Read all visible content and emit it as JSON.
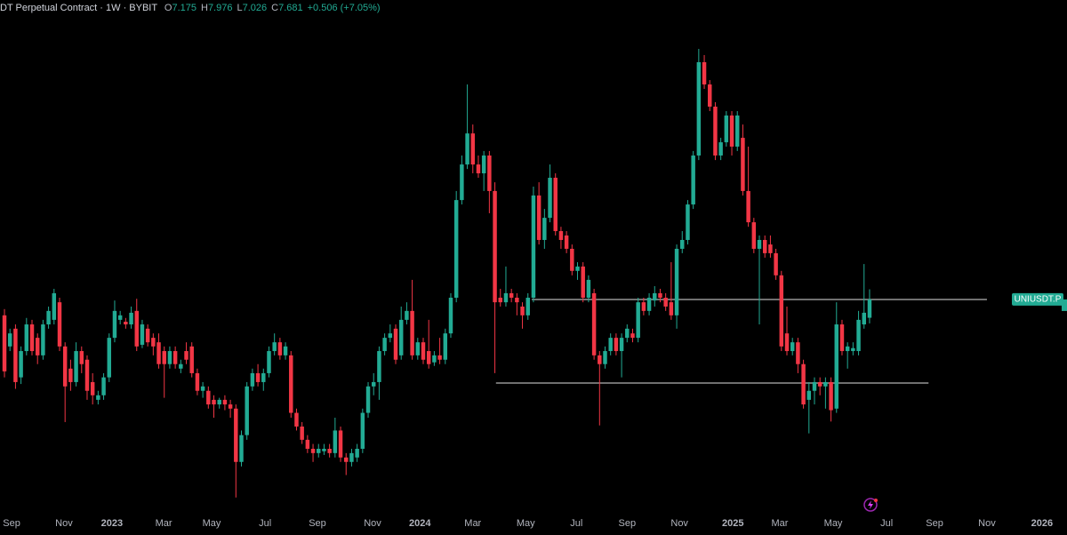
{
  "chart_data": {
    "type": "candlestick",
    "title": "DT Perpetual Contract · 1W · BYBIT",
    "ohlc_keys": [
      "O",
      "H",
      "L",
      "C"
    ],
    "change": "+0.506 (+7.05%)",
    "symbol_tag": "UNIUSDT.P",
    "up_color": "#22ab94",
    "down_color": "#f23645",
    "log_scale": true,
    "ylim": [
      3.5,
      23.36
    ],
    "xlim": [
      -0.81,
      192.83
    ],
    "xticks": [
      {
        "value": 1.3,
        "label": "Sep"
      },
      {
        "value": 10.8,
        "label": "Nov"
      },
      {
        "value": 19.5,
        "label": "2023"
      },
      {
        "value": 28.9,
        "label": "Mar"
      },
      {
        "value": 37.6,
        "label": "May"
      },
      {
        "value": 47.3,
        "label": "Jul"
      },
      {
        "value": 56.8,
        "label": "Sep"
      },
      {
        "value": 66.8,
        "label": "Nov"
      },
      {
        "value": 75.4,
        "label": "2024"
      },
      {
        "value": 85.0,
        "label": "Mar"
      },
      {
        "value": 94.6,
        "label": "May"
      },
      {
        "value": 103.8,
        "label": "Jul"
      },
      {
        "value": 113.0,
        "label": "Sep"
      },
      {
        "value": 122.5,
        "label": "Nov"
      },
      {
        "value": 132.2,
        "label": "2025"
      },
      {
        "value": 140.7,
        "label": "Mar"
      },
      {
        "value": 150.4,
        "label": "May"
      },
      {
        "value": 160.1,
        "label": "Jul"
      },
      {
        "value": 168.8,
        "label": "Sep"
      },
      {
        "value": 178.3,
        "label": "Nov"
      },
      {
        "value": 188.3,
        "label": "2026"
      }
    ],
    "levels": [
      {
        "value": 7.68,
        "x": [
          95.7,
          178.3
        ]
      },
      {
        "value": 5.63,
        "x": [
          89.2,
          167.7
        ]
      }
    ],
    "candles": [
      [
        7.24,
        7.41,
        5.75,
        5.88
      ],
      [
        6.45,
        6.89,
        6.34,
        6.77
      ],
      [
        6.89,
        7.0,
        5.51,
        5.65
      ],
      [
        5.75,
        6.45,
        5.61,
        6.34
      ],
      [
        6.34,
        7.17,
        6.24,
        7.0
      ],
      [
        7.0,
        7.12,
        6.24,
        6.34
      ],
      [
        6.66,
        6.77,
        6.04,
        6.24
      ],
      [
        6.24,
        7.12,
        6.14,
        7.0
      ],
      [
        7.0,
        7.48,
        6.89,
        7.36
      ],
      [
        7.12,
        7.99,
        7.0,
        7.86
      ],
      [
        7.6,
        7.73,
        6.34,
        6.45
      ],
      [
        6.45,
        6.55,
        4.87,
        5.56
      ],
      [
        5.94,
        6.14,
        5.47,
        5.65
      ],
      [
        5.65,
        6.55,
        5.56,
        6.34
      ],
      [
        6.34,
        6.45,
        5.84,
        6.04
      ],
      [
        6.14,
        6.24,
        5.29,
        5.47
      ],
      [
        5.65,
        5.84,
        5.2,
        5.38
      ],
      [
        5.29,
        5.47,
        5.2,
        5.38
      ],
      [
        5.38,
        5.84,
        5.29,
        5.75
      ],
      [
        5.75,
        6.77,
        5.65,
        6.66
      ],
      [
        6.66,
        7.65,
        6.55,
        7.36
      ],
      [
        7.12,
        7.36,
        7.0,
        7.24
      ],
      [
        7.07,
        7.17,
        6.89,
        7.0
      ],
      [
        7.0,
        7.48,
        6.89,
        7.31
      ],
      [
        7.36,
        7.7,
        6.34,
        6.45
      ],
      [
        6.49,
        7.12,
        6.41,
        7.0
      ],
      [
        6.89,
        7.0,
        6.45,
        6.55
      ],
      [
        6.66,
        6.77,
        6.24,
        6.45
      ],
      [
        6.55,
        6.77,
        5.94,
        6.04
      ],
      [
        6.34,
        6.45,
        5.33,
        6.04
      ],
      [
        6.04,
        6.45,
        5.94,
        6.34
      ],
      [
        6.34,
        6.45,
        5.94,
        6.04
      ],
      [
        5.94,
        6.14,
        5.84,
        6.04
      ],
      [
        6.34,
        6.55,
        6.04,
        6.14
      ],
      [
        6.45,
        6.55,
        5.75,
        5.84
      ],
      [
        5.84,
        5.94,
        5.38,
        5.47
      ],
      [
        5.47,
        5.65,
        5.33,
        5.56
      ],
      [
        5.47,
        5.56,
        5.12,
        5.2
      ],
      [
        5.29,
        5.38,
        4.95,
        5.2
      ],
      [
        5.2,
        5.33,
        5.12,
        5.29
      ],
      [
        5.29,
        5.38,
        5.09,
        5.2
      ],
      [
        5.2,
        5.29,
        4.95,
        5.12
      ],
      [
        5.12,
        5.2,
        3.68,
        4.2
      ],
      [
        4.2,
        4.72,
        4.13,
        4.64
      ],
      [
        4.64,
        5.65,
        4.56,
        5.56
      ],
      [
        5.56,
        5.94,
        5.47,
        5.84
      ],
      [
        5.84,
        6.04,
        5.56,
        5.65
      ],
      [
        5.65,
        5.94,
        5.47,
        5.84
      ],
      [
        5.84,
        6.45,
        5.75,
        6.34
      ],
      [
        6.34,
        6.77,
        6.24,
        6.55
      ],
      [
        6.55,
        6.66,
        6.14,
        6.24
      ],
      [
        6.24,
        6.55,
        6.14,
        6.45
      ],
      [
        6.24,
        6.34,
        4.95,
        5.04
      ],
      [
        5.04,
        5.12,
        4.72,
        4.79
      ],
      [
        4.79,
        4.87,
        4.49,
        4.56
      ],
      [
        4.56,
        4.64,
        4.34,
        4.41
      ],
      [
        4.41,
        4.49,
        4.2,
        4.34
      ],
      [
        4.34,
        4.49,
        4.27,
        4.41
      ],
      [
        4.37,
        4.49,
        4.31,
        4.41
      ],
      [
        4.41,
        4.49,
        4.27,
        4.34
      ],
      [
        4.34,
        4.95,
        4.27,
        4.72
      ],
      [
        4.72,
        4.79,
        4.2,
        4.27
      ],
      [
        4.27,
        4.34,
        4.0,
        4.2
      ],
      [
        4.2,
        4.41,
        4.13,
        4.34
      ],
      [
        4.27,
        4.49,
        4.2,
        4.41
      ],
      [
        4.41,
        5.12,
        4.34,
        5.04
      ],
      [
        5.04,
        5.65,
        4.95,
        5.56
      ],
      [
        5.56,
        5.84,
        5.38,
        5.65
      ],
      [
        5.65,
        6.45,
        5.29,
        6.34
      ],
      [
        6.34,
        6.77,
        6.24,
        6.66
      ],
      [
        6.66,
        7.0,
        6.55,
        6.77
      ],
      [
        6.89,
        7.0,
        6.04,
        6.14
      ],
      [
        6.24,
        7.48,
        6.14,
        7.12
      ],
      [
        7.12,
        7.6,
        7.0,
        7.36
      ],
      [
        7.36,
        8.26,
        6.14,
        6.24
      ],
      [
        6.24,
        6.66,
        6.14,
        6.55
      ],
      [
        6.55,
        6.66,
        6.04,
        6.14
      ],
      [
        6.34,
        7.12,
        5.94,
        6.04
      ],
      [
        6.08,
        6.34,
        6.0,
        6.24
      ],
      [
        6.24,
        6.66,
        6.04,
        6.14
      ],
      [
        6.14,
        6.89,
        6.04,
        6.77
      ],
      [
        6.77,
        7.86,
        6.66,
        7.73
      ],
      [
        7.73,
        11.49,
        7.6,
        11.11
      ],
      [
        11.11,
        13.11,
        10.93,
        12.68
      ],
      [
        12.68,
        17.07,
        12.47,
        14.23
      ],
      [
        14.23,
        14.71,
        12.27,
        12.68
      ],
      [
        12.68,
        13.11,
        12.07,
        12.27
      ],
      [
        12.27,
        13.33,
        11.49,
        13.11
      ],
      [
        13.11,
        13.33,
        10.58,
        11.49
      ],
      [
        11.49,
        11.87,
        5.84,
        7.6
      ],
      [
        7.73,
        7.99,
        7.48,
        7.6
      ],
      [
        7.6,
        8.68,
        7.48,
        7.86
      ],
      [
        7.86,
        7.99,
        7.6,
        7.73
      ],
      [
        7.73,
        7.86,
        7.24,
        7.6
      ],
      [
        7.48,
        7.6,
        6.89,
        7.24
      ],
      [
        7.24,
        7.86,
        7.12,
        7.73
      ],
      [
        7.73,
        11.68,
        7.6,
        11.3
      ],
      [
        11.3,
        11.87,
        9.42,
        9.58
      ],
      [
        9.58,
        10.75,
        9.27,
        10.4
      ],
      [
        10.4,
        12.68,
        10.23,
        12.07
      ],
      [
        12.07,
        12.27,
        9.74,
        9.9
      ],
      [
        9.9,
        10.06,
        9.27,
        9.58
      ],
      [
        9.74,
        9.9,
        9.12,
        9.27
      ],
      [
        9.27,
        9.42,
        8.4,
        8.54
      ],
      [
        8.54,
        8.82,
        8.26,
        8.68
      ],
      [
        8.68,
        8.82,
        7.6,
        7.73
      ],
      [
        7.73,
        8.4,
        7.6,
        8.26
      ],
      [
        7.86,
        7.99,
        6.14,
        6.24
      ],
      [
        6.24,
        6.34,
        4.81,
        6.04
      ],
      [
        6.04,
        6.45,
        5.94,
        6.34
      ],
      [
        6.34,
        6.77,
        6.24,
        6.66
      ],
      [
        6.66,
        6.77,
        6.24,
        6.34
      ],
      [
        6.34,
        6.77,
        5.75,
        6.66
      ],
      [
        6.66,
        7.0,
        6.55,
        6.89
      ],
      [
        6.77,
        6.89,
        6.55,
        6.66
      ],
      [
        6.66,
        7.73,
        6.55,
        7.6
      ],
      [
        7.6,
        7.73,
        7.24,
        7.36
      ],
      [
        7.36,
        7.86,
        7.24,
        7.73
      ],
      [
        7.65,
        8.07,
        7.48,
        7.86
      ],
      [
        7.86,
        7.99,
        7.6,
        7.73
      ],
      [
        7.73,
        7.86,
        7.36,
        7.48
      ],
      [
        7.6,
        8.82,
        7.12,
        7.24
      ],
      [
        7.24,
        9.42,
        6.89,
        9.27
      ],
      [
        9.27,
        9.9,
        9.12,
        9.58
      ],
      [
        9.58,
        11.11,
        9.42,
        10.93
      ],
      [
        10.93,
        13.33,
        10.75,
        13.11
      ],
      [
        13.11,
        19.48,
        12.89,
        18.54
      ],
      [
        18.54,
        19.04,
        16.79,
        17.07
      ],
      [
        17.07,
        17.35,
        15.46,
        15.72
      ],
      [
        15.72,
        15.98,
        12.89,
        13.11
      ],
      [
        13.11,
        14.0,
        12.89,
        13.77
      ],
      [
        13.77,
        15.46,
        13.55,
        15.21
      ],
      [
        15.21,
        15.46,
        13.11,
        13.55
      ],
      [
        13.55,
        15.46,
        13.33,
        15.21
      ],
      [
        14.0,
        14.71,
        11.3,
        11.49
      ],
      [
        11.49,
        13.55,
        10.06,
        10.23
      ],
      [
        10.23,
        10.4,
        9.12,
        9.27
      ],
      [
        9.27,
        9.74,
        7.0,
        9.58
      ],
      [
        9.58,
        9.74,
        8.97,
        9.12
      ],
      [
        9.42,
        9.74,
        8.97,
        9.12
      ],
      [
        9.12,
        9.27,
        8.26,
        8.4
      ],
      [
        8.4,
        8.54,
        6.34,
        6.45
      ],
      [
        6.77,
        7.48,
        6.24,
        6.34
      ],
      [
        6.34,
        6.66,
        6.24,
        6.55
      ],
      [
        6.55,
        6.66,
        5.84,
        6.04
      ],
      [
        6.04,
        6.14,
        5.12,
        5.2
      ],
      [
        5.29,
        5.65,
        4.67,
        5.47
      ],
      [
        5.47,
        5.75,
        5.2,
        5.65
      ],
      [
        5.65,
        5.75,
        5.38,
        5.56
      ],
      [
        5.56,
        5.75,
        5.12,
        5.65
      ],
      [
        5.65,
        5.75,
        4.88,
        5.09
      ],
      [
        5.12,
        7.6,
        5.04,
        7.0
      ],
      [
        7.0,
        7.12,
        6.24,
        6.34
      ],
      [
        6.34,
        6.55,
        5.94,
        6.45
      ],
      [
        6.34,
        6.55,
        6.24,
        6.41
      ],
      [
        6.34,
        7.36,
        6.24,
        7.12
      ],
      [
        7.0,
        8.76,
        6.89,
        7.31
      ],
      [
        7.175,
        7.976,
        7.026,
        7.681
      ]
    ]
  }
}
